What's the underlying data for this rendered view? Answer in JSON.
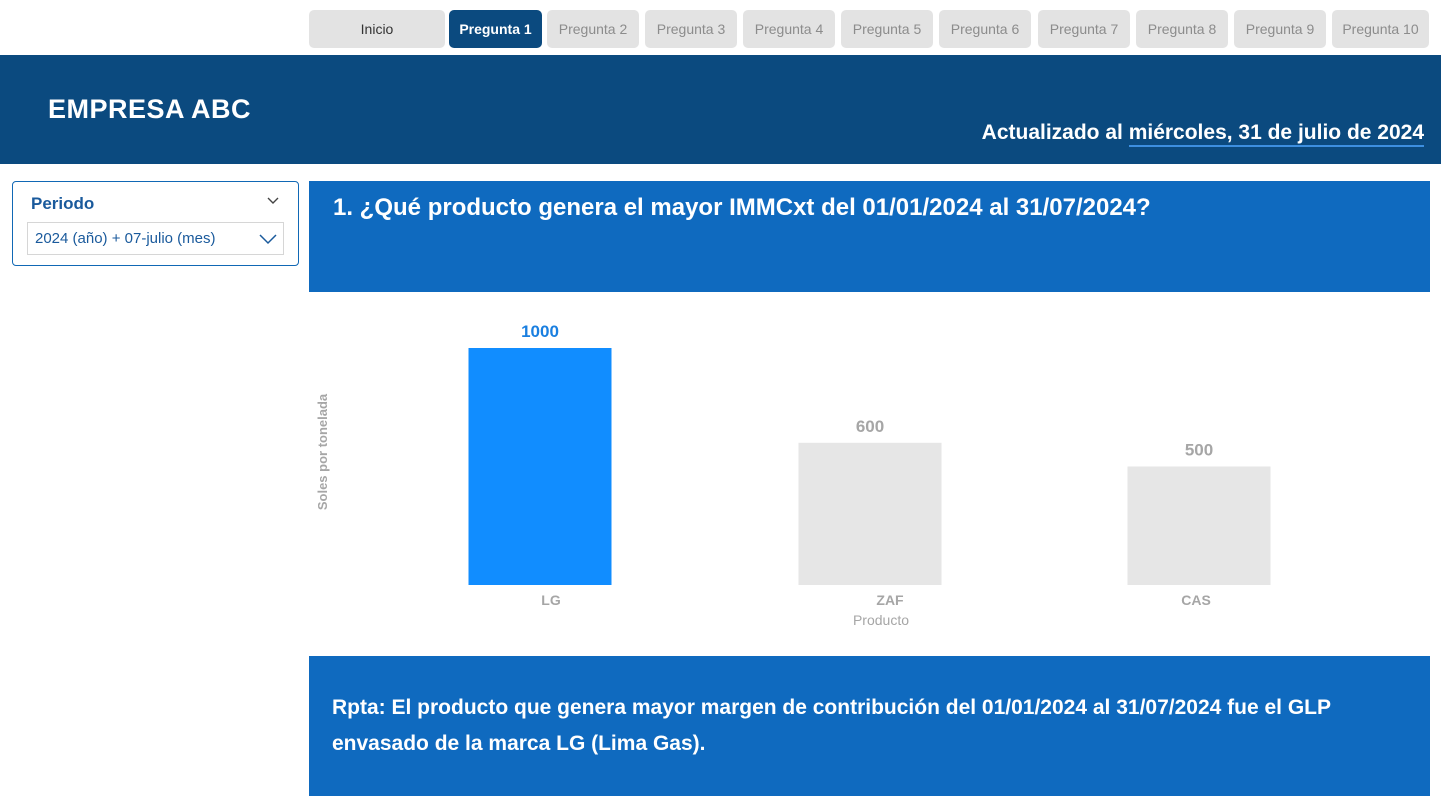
{
  "tabs": [
    {
      "label": "Inicio",
      "state": "home"
    },
    {
      "label": "Pregunta 1",
      "state": "active"
    },
    {
      "label": "Pregunta 2",
      "state": "inactive"
    },
    {
      "label": "Pregunta 3",
      "state": "inactive"
    },
    {
      "label": "Pregunta 4",
      "state": "inactive"
    },
    {
      "label": "Pregunta 5",
      "state": "inactive"
    },
    {
      "label": "Pregunta 6",
      "state": "inactive"
    },
    {
      "label": "Pregunta 7",
      "state": "inactive"
    },
    {
      "label": "Pregunta 8",
      "state": "inactive"
    },
    {
      "label": "Pregunta 9",
      "state": "inactive"
    },
    {
      "label": "Pregunta 10",
      "state": "inactive"
    }
  ],
  "header": {
    "title": "EMPRESA ABC",
    "updated_prefix": "Actualizado al ",
    "updated_date": "miércoles, 31 de julio de 2024"
  },
  "filter": {
    "label": "Periodo",
    "selected_value": "2024 (año) + 07-julio (mes)",
    "icons": [
      "chevron-down-icon",
      "chevron-down-icon"
    ]
  },
  "question": {
    "text": "1. ¿Qué producto genera el mayor IMMCxt del 01/01/2024 al 31/07/2024?"
  },
  "chart_data": {
    "type": "bar",
    "categories": [
      "LG",
      "ZAF",
      "CAS"
    ],
    "values": [
      1000,
      600,
      500
    ],
    "xlabel": "Producto",
    "ylabel": "Soles por tonelada",
    "ylim": [
      0,
      1000
    ],
    "grid": false,
    "highlight_index": 0,
    "colors": {
      "highlight": "#118dff",
      "highlight_label": "#1a7fe0",
      "other": "#e6e6e6",
      "other_label": "#a6a6a6",
      "axis_text": "#a6a6a6"
    }
  },
  "answer": {
    "text": "Rpta: El producto que genera mayor margen de contribución del 01/01/2024 al 31/07/2024 fue el GLP envasado de la marca LG (Lima Gas)."
  },
  "colors": {
    "header_bg": "#0b4a7f",
    "banner_bg": "#0f6abf",
    "tab_active": "#0b4a7f",
    "tab_inactive": "#e3e3e3"
  }
}
